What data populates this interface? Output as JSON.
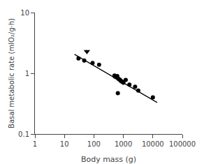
{
  "chart_data": {
    "type": "scatter",
    "title": "",
    "xlabel": "Body mass (g)",
    "ylabel": "Basal metabolic rate (mlO₂/g·h)",
    "log": true,
    "grid": false,
    "xlim": [
      1,
      100000
    ],
    "ylim": [
      0.1,
      10
    ],
    "xticks": [
      1,
      10,
      100,
      1000,
      10000,
      100000
    ],
    "yticks": [
      0.1,
      1,
      10
    ],
    "series": [
      {
        "type": "scatter",
        "marker": "circle",
        "color": "black",
        "x": [
          30,
          47,
          90,
          150,
          500,
          520,
          580,
          620,
          650,
          700,
          750,
          800,
          850,
          920,
          1000,
          650,
          1200,
          1600,
          2500,
          3200,
          10000
        ],
        "values": [
          1.75,
          1.62,
          1.48,
          1.38,
          0.92,
          0.88,
          0.86,
          0.9,
          0.83,
          0.8,
          0.79,
          0.76,
          0.74,
          0.73,
          0.7,
          0.47,
          0.78,
          0.65,
          0.6,
          0.52,
          0.4
        ]
      },
      {
        "type": "scatter",
        "marker": "triangle-down",
        "color": "black",
        "x": [
          58
        ],
        "values": [
          2.28
        ]
      },
      {
        "type": "line",
        "color": "black",
        "x": [
          22,
          14000
        ],
        "values": [
          2.05,
          0.33
        ]
      }
    ]
  }
}
